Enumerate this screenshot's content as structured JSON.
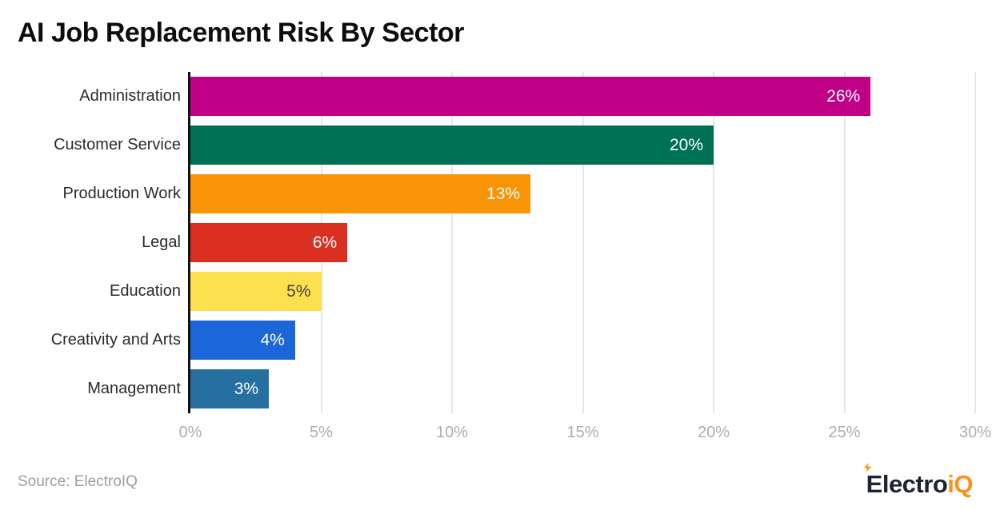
{
  "title": "AI Job Replacement Risk By Sector",
  "source": "Source: ElectroIQ",
  "logo": {
    "part1": "Electro",
    "part2": "iQ"
  },
  "chart_data": {
    "type": "bar",
    "orientation": "horizontal",
    "title": "AI Job Replacement Risk By Sector",
    "xlabel": "",
    "ylabel": "",
    "xlim": [
      0,
      30
    ],
    "grid": "vertical",
    "legend": "none",
    "categories": [
      "Administration",
      "Customer Service",
      "Production Work",
      "Legal",
      "Education",
      "Creativity and Arts",
      "Management"
    ],
    "values": [
      26,
      20,
      13,
      6,
      5,
      4,
      3
    ],
    "value_labels": [
      "26%",
      "20%",
      "13%",
      "6%",
      "5%",
      "4%",
      "3%"
    ],
    "bar_colors": [
      "#bf0087",
      "#007054",
      "#f89406",
      "#da2f21",
      "#fce04e",
      "#1b66d9",
      "#2570a1"
    ],
    "value_label_colors": [
      "#ffffff",
      "#ffffff",
      "#ffffff",
      "#ffffff",
      "#424242",
      "#ffffff",
      "#ffffff"
    ],
    "x_ticks": [
      {
        "value": 0,
        "label": "0%"
      },
      {
        "value": 5,
        "label": "5%"
      },
      {
        "value": 10,
        "label": "10%"
      },
      {
        "value": 15,
        "label": "15%"
      },
      {
        "value": 20,
        "label": "20%"
      },
      {
        "value": 25,
        "label": "25%"
      },
      {
        "value": 30,
        "label": "30%"
      }
    ],
    "axis_color": "#101010",
    "gridline_color": "#e9e7e3",
    "tick_label_color": "#b0adab"
  }
}
